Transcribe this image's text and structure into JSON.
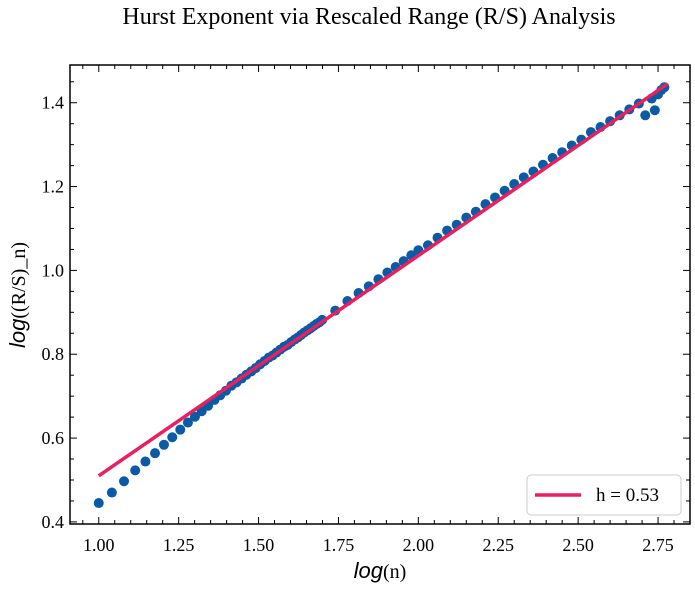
{
  "chart_data": {
    "type": "scatter",
    "title": "Hurst Exponent via Rescaled Range (R/S) Analysis",
    "xlabel": {
      "italic": "log",
      "rest": "(n)"
    },
    "ylabel": {
      "italic": "log",
      "rest": "((R/S)_n)"
    },
    "xlim": [
      0.91,
      2.85
    ],
    "ylim": [
      0.395,
      1.49
    ],
    "xticks": [
      1.0,
      1.25,
      1.5,
      1.75,
      2.0,
      2.25,
      2.5,
      2.75
    ],
    "xtick_labels": [
      "1.00",
      "1.25",
      "1.50",
      "1.75",
      "2.00",
      "2.25",
      "2.50",
      "2.75"
    ],
    "yticks": [
      0.4,
      0.6,
      0.8,
      1.0,
      1.2,
      1.4
    ],
    "ytick_labels": [
      "0.4",
      "0.6",
      "0.8",
      "1.0",
      "1.2",
      "1.4"
    ],
    "series": [
      {
        "kind": "scatter",
        "color": "#0a5aa6",
        "x": [
          1.0,
          1.041,
          1.079,
          1.114,
          1.146,
          1.176,
          1.204,
          1.23,
          1.255,
          1.279,
          1.301,
          1.322,
          1.342,
          1.362,
          1.38,
          1.398,
          1.415,
          1.431,
          1.447,
          1.462,
          1.477,
          1.491,
          1.505,
          1.519,
          1.532,
          1.544,
          1.556,
          1.568,
          1.58,
          1.591,
          1.602,
          1.613,
          1.623,
          1.633,
          1.643,
          1.653,
          1.663,
          1.672,
          1.681,
          1.69,
          1.699,
          1.74,
          1.778,
          1.813,
          1.845,
          1.875,
          1.903,
          1.929,
          1.954,
          1.978,
          2.0,
          2.03,
          2.06,
          2.09,
          2.12,
          2.15,
          2.18,
          2.21,
          2.24,
          2.27,
          2.3,
          2.33,
          2.36,
          2.39,
          2.42,
          2.45,
          2.48,
          2.51,
          2.54,
          2.57,
          2.6,
          2.63,
          2.66,
          2.69,
          2.71,
          2.73,
          2.74,
          2.75,
          2.76,
          2.77
        ],
        "y": [
          0.445,
          0.47,
          0.497,
          0.523,
          0.544,
          0.564,
          0.584,
          0.602,
          0.62,
          0.637,
          0.651,
          0.664,
          0.677,
          0.691,
          0.702,
          0.713,
          0.725,
          0.733,
          0.742,
          0.751,
          0.759,
          0.767,
          0.776,
          0.784,
          0.792,
          0.797,
          0.804,
          0.811,
          0.818,
          0.822,
          0.829,
          0.835,
          0.84,
          0.846,
          0.852,
          0.857,
          0.862,
          0.867,
          0.872,
          0.876,
          0.882,
          0.904,
          0.927,
          0.946,
          0.962,
          0.979,
          0.995,
          1.008,
          1.022,
          1.036,
          1.048,
          1.06,
          1.078,
          1.095,
          1.109,
          1.126,
          1.14,
          1.158,
          1.174,
          1.19,
          1.206,
          1.222,
          1.236,
          1.252,
          1.268,
          1.282,
          1.298,
          1.312,
          1.33,
          1.342,
          1.356,
          1.37,
          1.384,
          1.398,
          1.37,
          1.41,
          1.382,
          1.42,
          1.43,
          1.437
        ]
      },
      {
        "kind": "line",
        "name": "h = 0.53",
        "color": "#e8205f",
        "x": [
          1.0,
          2.78
        ],
        "y": [
          0.51,
          1.445
        ]
      }
    ],
    "legend": {
      "position": "bottom-right",
      "entries": [
        "h = 0.53"
      ]
    },
    "grid": false
  }
}
